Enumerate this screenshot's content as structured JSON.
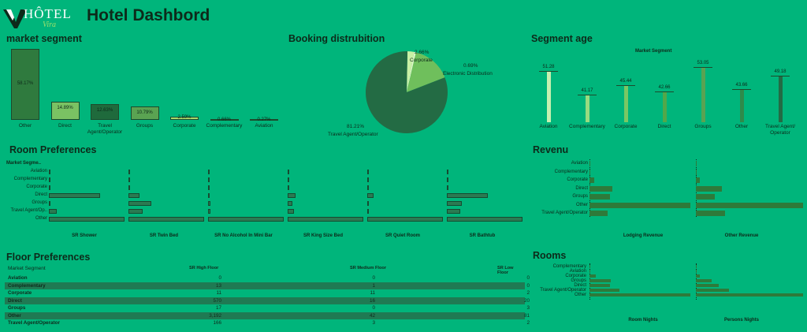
{
  "header": {
    "logo_word": "HÔTEL",
    "logo_sub": "Vira",
    "title": "Hotel Dashbord"
  },
  "market_segment": {
    "title": "market segment",
    "bars": [
      {
        "label": "Other",
        "value": "58.17%",
        "pct": 58.17,
        "color": "#2f7a3e"
      },
      {
        "label": "Direct",
        "value": "14.89%",
        "pct": 14.89,
        "color": "#7ac263"
      },
      {
        "label": "Travel Agent/Operator",
        "value": "12.63%",
        "pct": 12.63,
        "color": "#1f6a3c"
      },
      {
        "label": "Groups",
        "value": "10.79%",
        "pct": 10.79,
        "color": "#5aa352"
      },
      {
        "label": "Corporate",
        "value": "2.59%",
        "pct": 2.59,
        "color": "#a8d86a"
      },
      {
        "label": "Complementary",
        "value": "0.66%",
        "pct": 0.66,
        "color": "#a8d86a"
      },
      {
        "label": "Aviation",
        "value": "0.27%",
        "pct": 0.27,
        "color": "#c9eb8a"
      }
    ]
  },
  "booking": {
    "title": "Booking distrubition",
    "slices": [
      {
        "label": "Travel Agent/Operator",
        "value": "81.21%",
        "pct": 81.21,
        "color": "#236b44"
      },
      {
        "label": "Corporate",
        "value": "2.66%",
        "pct": 2.66,
        "color": "#c9f0a5"
      },
      {
        "label": "Electronic Distribution",
        "value": "0.69%",
        "pct": 0.69,
        "color": "#e3f7c6"
      },
      {
        "label": "",
        "value": "",
        "pct": 15.44,
        "color": "#6fbf5c"
      }
    ]
  },
  "segment_age": {
    "title": "Segment age",
    "subtitle": "Market Segment",
    "bars": [
      {
        "label": "Aviation",
        "value": "51.28",
        "num": 51.28,
        "color": "#c8f0b0"
      },
      {
        "label": "Complementary",
        "value": "41.17",
        "num": 41.17,
        "color": "#98dc80"
      },
      {
        "label": "Corporate",
        "value": "45.44",
        "num": 45.44,
        "color": "#7ac863"
      },
      {
        "label": "Direct",
        "value": "42.66",
        "num": 42.66,
        "color": "#52a84a"
      },
      {
        "label": "Groups",
        "value": "53.05",
        "num": 53.05,
        "color": "#5aa352"
      },
      {
        "label": "Other",
        "value": "43.66",
        "num": 43.66,
        "color": "#2f8a4a"
      },
      {
        "label": "Travel Agent/ Operator",
        "value": "49.18",
        "num": 49.18,
        "color": "#236b44"
      }
    ]
  },
  "room_pref": {
    "title": "Room Preferences",
    "header": "Market Segme..",
    "rows": [
      "Aviation",
      "Complementary",
      "Corporate",
      "Direct",
      "Groups",
      "Travel Agent/Op..",
      "Other"
    ],
    "columns": [
      {
        "label": "SR Shower",
        "values": [
          0.01,
          0.01,
          0.01,
          0.68,
          0.0,
          0.1,
          1.0
        ]
      },
      {
        "label": "SR Twin Bed",
        "values": [
          0.01,
          0.01,
          0.02,
          0.15,
          0.3,
          0.19,
          1.0
        ]
      },
      {
        "label": "SR No Alcohol In Mini Bar",
        "values": [
          0.01,
          0.01,
          0.01,
          0.02,
          0.03,
          0.03,
          1.0
        ]
      },
      {
        "label": "SR King Size Bed",
        "values": [
          0.01,
          0.01,
          0.01,
          0.1,
          0.06,
          0.08,
          1.0
        ]
      },
      {
        "label": "SR Quiet Room",
        "values": [
          0.01,
          0.01,
          0.01,
          0.08,
          0.0,
          0.0,
          1.0
        ]
      },
      {
        "label": "SR Bathtub",
        "values": [
          0.01,
          0.01,
          0.02,
          0.54,
          0.2,
          0.18,
          1.0
        ]
      }
    ]
  },
  "revenue": {
    "title": "Revenu",
    "rows": [
      "Aviation",
      "Complementary",
      "Corporate",
      "Direct",
      "Groups",
      "Other",
      "Travel Agent/Operator"
    ],
    "columns": [
      {
        "label": "Lodging Revenue",
        "values": [
          0.0,
          0.0,
          0.05,
          0.23,
          0.2,
          1.0,
          0.18
        ]
      },
      {
        "label": "Other Revenue",
        "values": [
          0.0,
          0.0,
          0.04,
          0.24,
          0.18,
          1.0,
          0.27
        ]
      }
    ]
  },
  "floor_pref": {
    "title": "Floor Preferences",
    "headers": [
      "Market Segment",
      "SR High Floor",
      "SR Medium Floor",
      "SR Low Floor"
    ],
    "rows": [
      [
        "Aviation",
        "0",
        "0",
        "0"
      ],
      [
        "Complementary",
        "13",
        "1",
        "0"
      ],
      [
        "Corporate",
        "11",
        "11",
        "2"
      ],
      [
        "Direct",
        "570",
        "16",
        "20"
      ],
      [
        "Groups",
        "17",
        "0",
        "3"
      ],
      [
        "Other",
        "3,192",
        "42",
        "81"
      ],
      [
        "Travel Agent/Operator",
        "166",
        "3",
        "2"
      ]
    ]
  },
  "rooms": {
    "title": "Rooms",
    "rows": [
      "Complementary",
      "Aviation",
      "Corporate",
      "Groups",
      "Direct",
      "Travel Agent/Operator",
      "Other"
    ],
    "columns": [
      {
        "label": "Room Nights",
        "values": [
          0.01,
          0.01,
          0.06,
          0.21,
          0.2,
          0.3,
          1.0
        ]
      },
      {
        "label": "Persons Nights",
        "values": [
          0.01,
          0.01,
          0.04,
          0.15,
          0.21,
          0.31,
          1.0
        ]
      }
    ]
  }
}
